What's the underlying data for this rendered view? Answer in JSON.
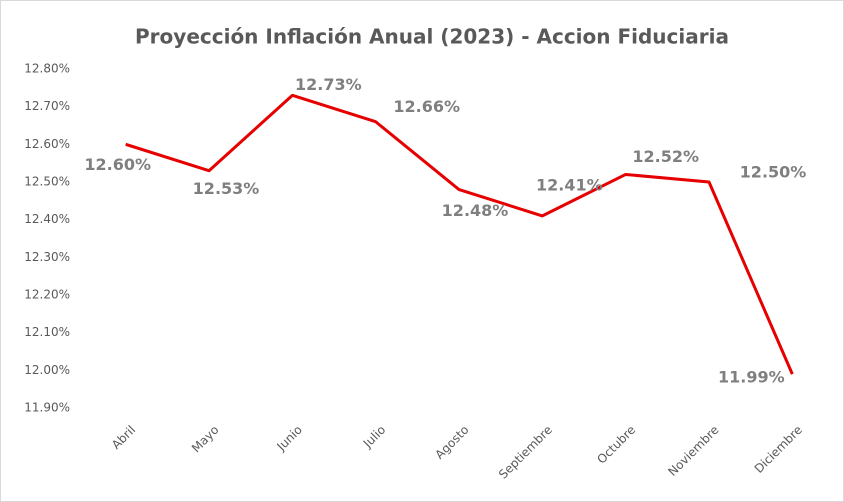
{
  "chart_data": {
    "type": "line",
    "title": "Proyección Inflación Anual (2023)  - Accion Fiduciaria",
    "categories": [
      "Abril",
      "Mayo",
      "Junio",
      "Julio",
      "Agosto",
      "Septiembre",
      "Octubre",
      "Noviembre",
      "Diciembre"
    ],
    "series": [
      {
        "name": "Inflación",
        "color": "#e60000",
        "values": [
          12.6,
          12.53,
          12.73,
          12.66,
          12.48,
          12.41,
          12.52,
          12.5,
          11.99
        ],
        "value_labels": [
          "12.60%",
          "12.53%",
          "12.73%",
          "12.66%",
          "12.48%",
          "12.41%",
          "12.52%",
          "12.50%",
          "11.99%"
        ]
      }
    ],
    "ylim": [
      11.9,
      12.8
    ],
    "yticks": [
      {
        "value": 11.9,
        "label": "11.90%"
      },
      {
        "value": 12.0,
        "label": "12.00%"
      },
      {
        "value": 12.1,
        "label": "12.10%"
      },
      {
        "value": 12.2,
        "label": "12.20%"
      },
      {
        "value": 12.3,
        "label": "12.30%"
      },
      {
        "value": 12.4,
        "label": "12.40%"
      },
      {
        "value": 12.5,
        "label": "12.50%"
      },
      {
        "value": 12.6,
        "label": "12.60%"
      },
      {
        "value": 12.7,
        "label": "12.70%"
      },
      {
        "value": 12.8,
        "label": "12.80%"
      }
    ]
  }
}
